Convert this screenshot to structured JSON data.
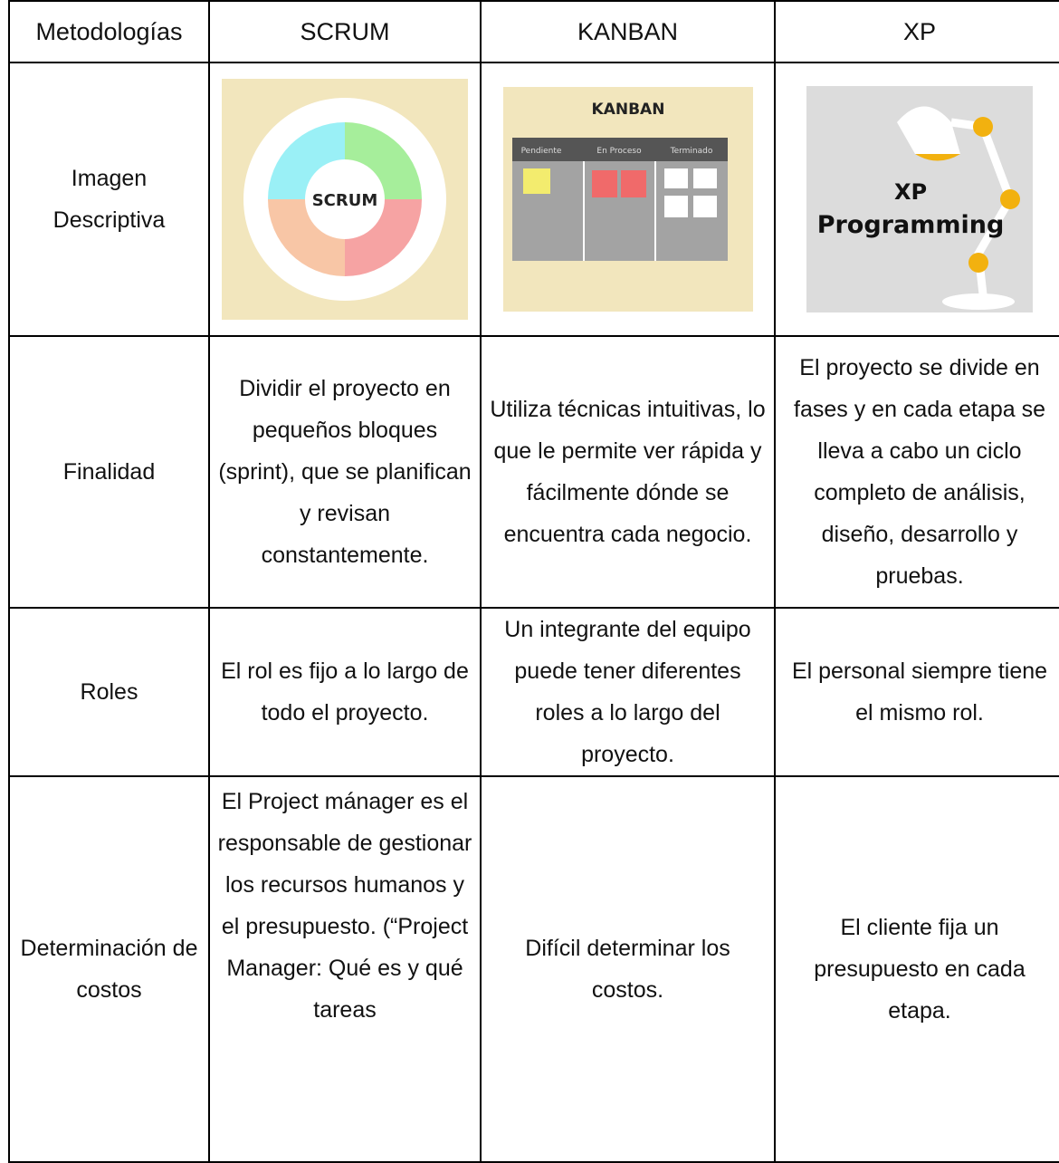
{
  "table": {
    "header": [
      "Metodologías",
      "SCRUM",
      "KANBAN",
      "XP"
    ],
    "image_row_label": "Imagen Descriptiva",
    "rows": [
      [
        "Finalidad",
        "Dividir el proyecto en pequeños bloques (sprint), que se planifican y revisan constantemente.",
        "Utiliza técnicas intuitivas, lo que le permite ver rápida y fácilmente dónde se encuentra cada negocio.",
        "El proyecto se divide en fases y en cada etapa se lleva a cabo un ciclo completo de análisis, diseño, desarrollo y pruebas."
      ],
      [
        "Roles",
        "El rol es fijo a lo largo de todo el proyecto.",
        "Un integrante del equipo puede tener diferentes roles a lo largo del proyecto.",
        "El personal siempre tiene el mismo rol."
      ],
      [
        "Determinación de costos",
        "El Project mánager es el responsable de gestionar los recursos humanos y el presupuesto. (“Project Manager: Qué es y qué tareas",
        "Difícil determinar los costos.",
        "El cliente fija un presupuesto en cada etapa."
      ]
    ]
  },
  "images": {
    "scrum": {
      "label": "SCRUM"
    },
    "kanban": {
      "title": "KANBAN",
      "columns": [
        "Pendiente",
        "En Proceso",
        "Terminado"
      ]
    },
    "xp": {
      "lines": [
        "XP",
        "Programming"
      ]
    }
  }
}
